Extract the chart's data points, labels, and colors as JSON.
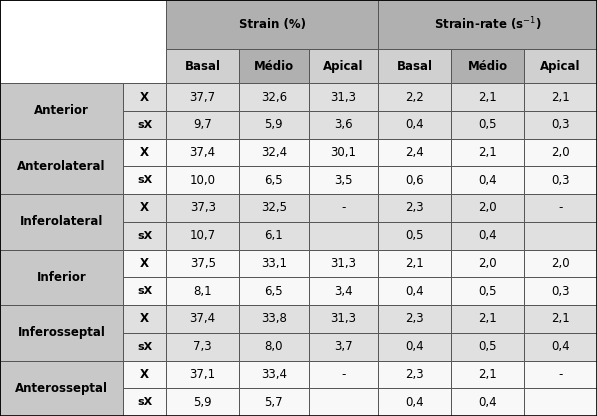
{
  "title_strain": "Strain (%)",
  "title_strain_rate_main": "Strain-rate (s",
  "title_strain_rate_sup": "-1",
  "title_strain_rate_end": ")",
  "col_headers": [
    "Basal",
    "Médio",
    "Apical",
    "Basal",
    "Médio",
    "Apical"
  ],
  "row_groups": [
    {
      "label": "Anterior",
      "X": [
        "37,7",
        "32,6",
        "31,3",
        "2,2",
        "2,1",
        "2,1"
      ],
      "sX": [
        "9,7",
        "5,9",
        "3,6",
        "0,4",
        "0,5",
        "0,3"
      ]
    },
    {
      "label": "Anterolateral",
      "X": [
        "37,4",
        "32,4",
        "30,1",
        "2,4",
        "2,1",
        "2,0"
      ],
      "sX": [
        "10,0",
        "6,5",
        "3,5",
        "0,6",
        "0,4",
        "0,3"
      ]
    },
    {
      "label": "Inferolateral",
      "X": [
        "37,3",
        "32,5",
        "-",
        "2,3",
        "2,0",
        "-"
      ],
      "sX": [
        "10,7",
        "6,1",
        "",
        "0,5",
        "0,4",
        ""
      ]
    },
    {
      "label": "Inferior",
      "X": [
        "37,5",
        "33,1",
        "31,3",
        "2,1",
        "2,0",
        "2,0"
      ],
      "sX": [
        "8,1",
        "6,5",
        "3,4",
        "0,4",
        "0,5",
        "0,3"
      ]
    },
    {
      "label": "Inferosseptal",
      "X": [
        "37,4",
        "33,8",
        "31,3",
        "2,3",
        "2,1",
        "2,1"
      ],
      "sX": [
        "7,3",
        "8,0",
        "3,7",
        "0,4",
        "0,5",
        "0,4"
      ]
    },
    {
      "label": "Anterosseptal",
      "X": [
        "37,1",
        "33,4",
        "-",
        "2,3",
        "2,1",
        "-"
      ],
      "sX": [
        "5,9",
        "5,7",
        "",
        "0,4",
        "0,4",
        ""
      ]
    }
  ],
  "header_dark_bg": "#b0b0b0",
  "header_light_bg": "#d0d0d0",
  "row_label_bg": "#c8c8c8",
  "data_bg_light": "#e0e0e0",
  "data_bg_white": "#f8f8f8",
  "border_color": "#555555",
  "text_color": "#000000",
  "header_fontsize": 8.5,
  "data_fontsize": 8.5,
  "label_fontsize": 8.5
}
